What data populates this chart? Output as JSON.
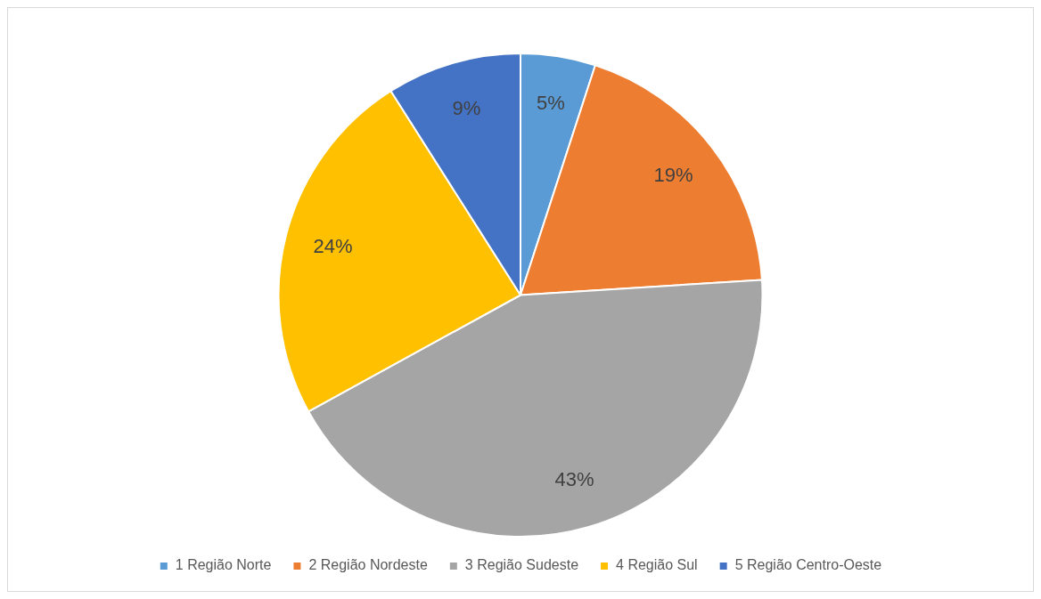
{
  "chart_data": {
    "type": "pie",
    "categories": [
      "1 Região Norte",
      "2 Região Nordeste",
      "3 Região Sudeste",
      "4 Região Sul",
      "5 Região Centro-Oeste"
    ],
    "values": [
      5,
      19,
      43,
      24,
      9
    ],
    "value_labels": [
      "5%",
      "19%",
      "43%",
      "24%",
      "9%"
    ],
    "colors": [
      "#5b9bd5",
      "#ed7d31",
      "#a5a5a5",
      "#ffc000",
      "#4472c4"
    ],
    "legend": "bottom"
  }
}
